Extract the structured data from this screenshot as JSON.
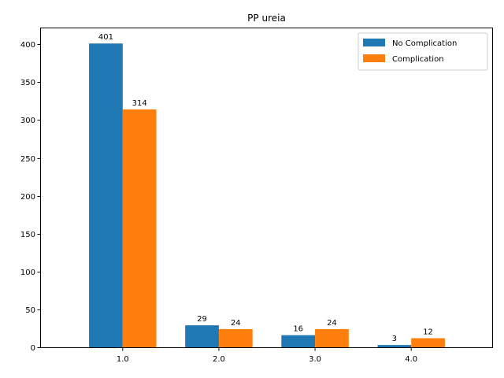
{
  "chart_data": {
    "type": "bar",
    "title": "PP ureia",
    "xlabel": "",
    "ylabel": "",
    "categories": [
      "1.0",
      "2.0",
      "3.0",
      "4.0"
    ],
    "series": [
      {
        "name": "No Complication",
        "values": [
          401,
          29,
          16,
          3
        ],
        "color": "#1f77b4"
      },
      {
        "name": "Complication",
        "values": [
          314,
          24,
          24,
          12
        ],
        "color": "#ff7f0e"
      }
    ],
    "ylim": [
      0,
      421
    ],
    "yticks": [
      0,
      50,
      100,
      150,
      200,
      250,
      300,
      350,
      400
    ],
    "legend_position": "top-right",
    "grid": false
  }
}
